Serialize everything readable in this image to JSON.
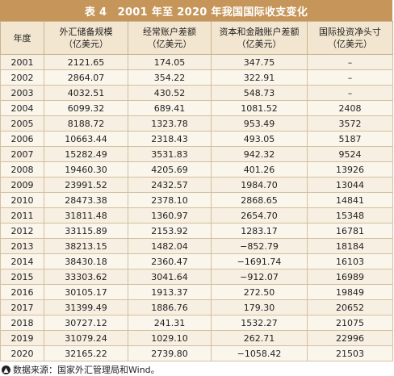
{
  "title": "表 4　2001 年至 2020 年我国国际收支变化",
  "headers": [
    [
      "年度",
      ""
    ],
    [
      "外汇储备规模",
      "（亿美元）"
    ],
    [
      "经常账户差额",
      "（亿美元）"
    ],
    [
      "资本和金融账户差额",
      "（亿美元）"
    ],
    [
      "国际投资净头寸",
      "（亿美元）"
    ]
  ],
  "rows": [
    [
      "2001",
      "2121.65",
      "174.05",
      "347.75",
      "–"
    ],
    [
      "2002",
      "2864.07",
      "354.22",
      "322.91",
      "–"
    ],
    [
      "2003",
      "4032.51",
      "430.52",
      "548.73",
      "–"
    ],
    [
      "2004",
      "6099.32",
      "689.41",
      "1081.52",
      "2408"
    ],
    [
      "2005",
      "8188.72",
      "1323.78",
      "953.49",
      "3572"
    ],
    [
      "2006",
      "10663.44",
      "2318.43",
      "493.05",
      "5187"
    ],
    [
      "2007",
      "15282.49",
      "3531.83",
      "942.32",
      "9524"
    ],
    [
      "2008",
      "19460.30",
      "4205.69",
      "401.26",
      "13926"
    ],
    [
      "2009",
      "23991.52",
      "2432.57",
      "1984.70",
      "13044"
    ],
    [
      "2010",
      "28473.38",
      "2378.10",
      "2868.65",
      "14841"
    ],
    [
      "2011",
      "31811.48",
      "1360.97",
      "2654.70",
      "15348"
    ],
    [
      "2012",
      "33115.89",
      "2153.92",
      "1283.17",
      "16781"
    ],
    [
      "2013",
      "38213.15",
      "1482.04",
      "−852.79",
      "18184"
    ],
    [
      "2014",
      "38430.18",
      "2360.47",
      "−1691.74",
      "16103"
    ],
    [
      "2015",
      "33303.62",
      "3041.64",
      "−912.07",
      "16989"
    ],
    [
      "2016",
      "30105.17",
      "1913.37",
      "272.50",
      "19849"
    ],
    [
      "2017",
      "31399.49",
      "1886.76",
      "179.30",
      "20652"
    ],
    [
      "2018",
      "30727.12",
      "241.31",
      "1532.27",
      "21075"
    ],
    [
      "2019",
      "31079.24",
      "1029.10",
      "262.71",
      "22996"
    ],
    [
      "2020",
      "32165.22",
      "2739.80",
      "−1058.42",
      "21503"
    ]
  ],
  "source_note": "数据来源：国家外汇管理局和Wind。",
  "colors": {
    "title_bg": "#c69559",
    "table_bg": "#f7efe1"
  },
  "icons": {
    "source": "up-arrow-circle-icon"
  }
}
